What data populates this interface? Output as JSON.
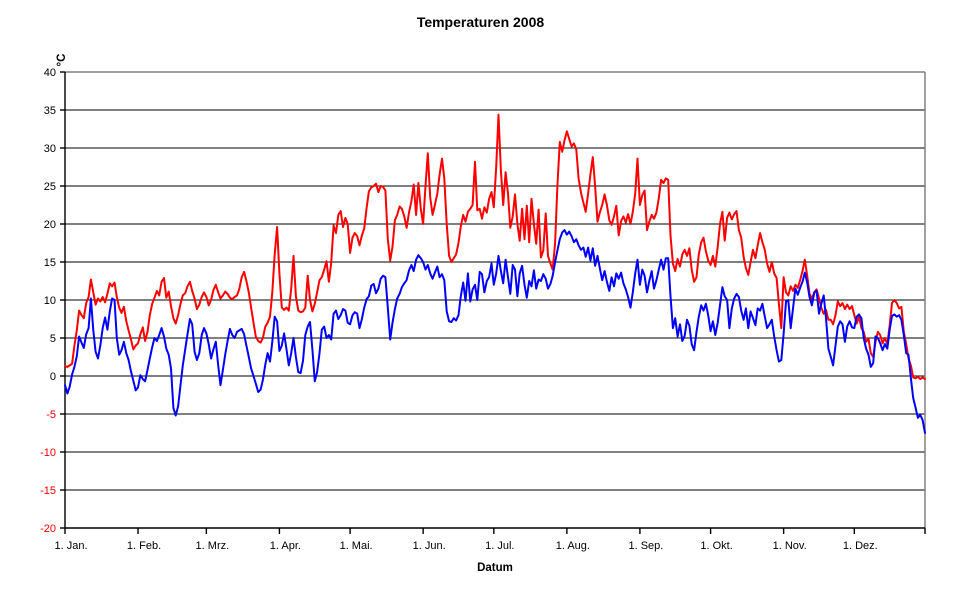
{
  "title": "Temperaturen 2008",
  "y_axis": {
    "title": "°C",
    "min": -20,
    "max": 40,
    "step": 5,
    "tick_labels": [
      "40",
      "35",
      "30",
      "25",
      "20",
      "15",
      "10",
      "5",
      "0",
      "-5",
      "-10",
      "-15",
      "-20"
    ],
    "positive_label_color": "#000000",
    "negative_label_color": "#ff0000"
  },
  "x_axis": {
    "title": "Datum",
    "ticks": [
      {
        "label": "1. Jan.",
        "day": 0
      },
      {
        "label": "1. Feb.",
        "day": 31
      },
      {
        "label": "1. Mrz.",
        "day": 60
      },
      {
        "label": "1. Apr.",
        "day": 91
      },
      {
        "label": "1. Mai.",
        "day": 121
      },
      {
        "label": "1. Jun.",
        "day": 152
      },
      {
        "label": "1. Jul.",
        "day": 182
      },
      {
        "label": "1. Aug.",
        "day": 213
      },
      {
        "label": "1. Sep.",
        "day": 244
      },
      {
        "label": "1. Okt.",
        "day": 274
      },
      {
        "label": "1. Nov.",
        "day": 305
      },
      {
        "label": "1. Dez.",
        "day": 335
      }
    ],
    "end_tick_day": 365
  },
  "plot_style": {
    "background": "#ffffff",
    "grid_color": "#000000",
    "axis_color": "#000000",
    "border_color": "#808080"
  },
  "chart_data": {
    "type": "line",
    "title": "Temperaturen 2008",
    "xlabel": "Datum",
    "ylabel": "°C",
    "ylim": [
      -20,
      40
    ],
    "grid": "horizontal",
    "legend": "none",
    "x_unit": "day of year 2008 (0 = 1. Jan.)",
    "series": [
      {
        "name": "rote-kurve-tagesmaximum",
        "color": "#ff0000",
        "values": [
          1.3,
          1.2,
          1.4,
          1.6,
          4,
          6,
          8.6,
          8,
          7.6,
          9.6,
          10.4,
          12.7,
          11,
          9.4,
          10.2,
          9.8,
          10.4,
          9.7,
          10.8,
          12.2,
          11.8,
          12.3,
          10.4,
          9,
          8.3,
          9.1,
          7.2,
          6,
          4.8,
          3.5,
          4,
          4.3,
          5.5,
          6.4,
          4.6,
          5.8,
          8,
          9.5,
          10.3,
          11.2,
          10.6,
          12.4,
          12.9,
          10.3,
          11.1,
          9.2,
          7.6,
          6.9,
          8,
          9.5,
          10.6,
          10.9,
          11.8,
          12.4,
          11.2,
          10.2,
          8.8,
          9.4,
          10.4,
          11,
          10.4,
          9.3,
          10,
          11.3,
          12,
          11,
          10.2,
          10.6,
          11.1,
          10.8,
          10.3,
          10.1,
          10.4,
          10.6,
          11.5,
          13,
          13.7,
          12.5,
          11,
          9,
          7,
          5.2,
          4.6,
          4.4,
          5,
          6.5,
          7,
          7.8,
          11,
          16,
          19.6,
          13.5,
          9,
          8.7,
          9,
          8.6,
          11.5,
          15.8,
          10.5,
          8.6,
          8.4,
          8.5,
          9,
          13.2,
          10,
          8.5,
          9.5,
          11,
          12.6,
          13,
          14,
          15.1,
          12.4,
          14.9,
          19.8,
          18.8,
          21.2,
          21.7,
          19.6,
          20.8,
          20,
          16.2,
          18.2,
          18.8,
          18.4,
          17.2,
          18.5,
          19.4,
          22.1,
          24.3,
          24.8,
          25,
          25.3,
          24.2,
          25,
          24.9,
          24.4,
          18,
          15.2,
          17,
          20.5,
          21.2,
          22.3,
          22,
          21,
          19.5,
          21.5,
          23,
          25.2,
          21.2,
          25.4,
          22,
          20,
          25,
          29.3,
          23.5,
          21.2,
          22.5,
          24,
          26.5,
          28.6,
          26,
          20,
          15.8,
          15,
          15.5,
          16,
          17.5,
          19.7,
          21.2,
          20.3,
          21.6,
          22,
          22.5,
          28.2,
          21.8,
          22,
          20.7,
          22.2,
          21.5,
          23.3,
          24.2,
          22.2,
          27.5,
          34.4,
          27,
          22.5,
          26.8,
          24,
          19.5,
          21,
          23.9,
          20,
          17.8,
          22,
          18,
          22.4,
          17.6,
          23.3,
          20,
          17.4,
          21.9,
          15.6,
          16.5,
          21.4,
          15.8,
          14.8,
          14,
          17.5,
          25,
          30.8,
          29.5,
          31,
          32.2,
          31.2,
          30.2,
          30.6,
          29.8,
          26,
          24.1,
          22.8,
          21.6,
          24,
          26.5,
          28.8,
          25,
          20.3,
          21.5,
          22.5,
          23.9,
          22.5,
          20.5,
          19.9,
          21,
          22.4,
          18.5,
          20.4,
          21,
          20.2,
          21.3,
          20,
          21.6,
          24,
          28.6,
          22.5,
          23.8,
          24.4,
          19.2,
          20.3,
          21.2,
          20.7,
          21.5,
          23.4,
          25.8,
          25.4,
          26,
          25.8,
          18.5,
          14.8,
          13.8,
          15.4,
          14.4,
          16,
          16.6,
          15.8,
          16.8,
          14,
          12.4,
          13,
          16,
          17.6,
          18.2,
          16.4,
          15.2,
          14.6,
          15.8,
          14.4,
          17,
          20,
          21.6,
          17.8,
          20.8,
          21.5,
          20.6,
          21.3,
          21.7,
          19.2,
          18.2,
          15.7,
          14.2,
          13.3,
          15,
          16.6,
          15.5,
          17.2,
          18.8,
          17.6,
          16.6,
          14.8,
          13.7,
          15,
          13.5,
          12.9,
          9.5,
          6.3,
          13,
          11,
          10.6,
          11.8,
          11.2,
          12,
          11.6,
          12.6,
          13.8,
          15.3,
          13.2,
          10.8,
          10.2,
          11,
          11.4,
          10.2,
          9,
          8.2,
          8.7,
          7.4,
          7.4,
          6.8,
          8,
          9.8,
          9.2,
          9.6,
          8.8,
          9.4,
          8.8,
          9.2,
          8,
          6.9,
          7.8,
          6.3,
          5.8,
          4.5,
          4.9,
          3,
          2.5,
          4.5,
          5.8,
          5.4,
          4.3,
          5,
          4.2,
          6.7,
          9.6,
          10,
          9.6,
          8.9,
          9.1,
          5.8,
          4.2,
          2.3,
          1.4,
          -0.2,
          -0.3,
          -0.1,
          -0.4,
          -0.2,
          -0.4
        ]
      },
      {
        "name": "blaue-kurve-tagesminimum",
        "color": "#0000ff",
        "values": [
          -1.2,
          -2.3,
          -1.4,
          0.2,
          1.2,
          2.6,
          5.2,
          4.4,
          3.7,
          5.5,
          6.3,
          10.2,
          6,
          3.2,
          2.3,
          4,
          6.3,
          7.7,
          6.1,
          8.5,
          10.2,
          10,
          5,
          2.8,
          3.4,
          4.5,
          3,
          2.1,
          0.6,
          -0.6,
          -1.9,
          -1.5,
          0.1,
          -0.4,
          -0.7,
          0.8,
          2.3,
          3.8,
          5,
          4.6,
          5.4,
          6.3,
          5.2,
          3.6,
          2.8,
          1,
          -4.2,
          -5.2,
          -4,
          -1.2,
          1.4,
          3.5,
          5.5,
          7.5,
          6.8,
          3.2,
          2.1,
          3,
          5.4,
          6.3,
          5.6,
          4.2,
          2.3,
          3.5,
          4.5,
          1.4,
          -1.2,
          0.8,
          2.8,
          4.6,
          6.2,
          5.4,
          5,
          5.8,
          6,
          6.2,
          5.5,
          4,
          2.5,
          1,
          0,
          -1,
          -2.1,
          -1.8,
          -0.5,
          1.5,
          3,
          1.9,
          4.5,
          7.8,
          7.2,
          3.3,
          4,
          5.6,
          3.5,
          1.4,
          3,
          5,
          2.5,
          0.5,
          0.4,
          2,
          5.4,
          6.5,
          7.1,
          3.5,
          -0.7,
          0.5,
          3,
          6.1,
          6.5,
          5,
          5.4,
          4.8,
          8.2,
          8.6,
          7.5,
          8,
          8.8,
          8.6,
          7,
          6.8,
          8,
          8.4,
          8.2,
          6.3,
          7.5,
          9,
          10.1,
          10.5,
          11.9,
          12.1,
          10.9,
          11.5,
          12.8,
          13.2,
          13,
          9,
          4.8,
          7,
          8.8,
          10.2,
          10.8,
          11.7,
          12.2,
          12.6,
          13.9,
          14.6,
          13.8,
          15.3,
          15.9,
          15.5,
          15,
          14,
          14.6,
          13.5,
          12.8,
          13.6,
          14.4,
          13,
          13.4,
          12.6,
          8.5,
          7.2,
          7.1,
          7.6,
          7.3,
          8,
          10.5,
          12.3,
          9.9,
          13.5,
          9.8,
          11.4,
          12,
          10,
          13.7,
          13.4,
          11,
          12.5,
          13,
          14.8,
          12,
          13.5,
          15.8,
          13.8,
          12.2,
          15.3,
          13,
          10.8,
          14.6,
          14,
          10.5,
          13.5,
          14.5,
          12,
          10.3,
          12.5,
          11.8,
          13.9,
          11.5,
          12.7,
          12.5,
          13.4,
          12.8,
          11.5,
          12.1,
          13.2,
          15,
          16.5,
          18,
          18.9,
          19.2,
          18.6,
          19,
          18.4,
          17.6,
          18,
          17.2,
          16.6,
          16.9,
          15.7,
          16.9,
          15.2,
          16.8,
          14.5,
          15.8,
          14.2,
          12.6,
          13.8,
          12.4,
          11.2,
          13,
          11.8,
          13.5,
          12.8,
          13.6,
          12.2,
          11.4,
          10.4,
          9,
          11,
          13.5,
          15.3,
          12,
          14,
          13.2,
          11,
          12.5,
          13.8,
          11.5,
          12.6,
          14,
          15.3,
          14,
          15.5,
          15.5,
          10.5,
          6.3,
          7.6,
          5.2,
          6.8,
          4.6,
          5.3,
          7.4,
          6.6,
          4.2,
          3.4,
          5.8,
          7.8,
          9.3,
          8.6,
          9.5,
          8,
          5.9,
          7.2,
          5.4,
          7,
          9.3,
          11.7,
          10.5,
          10,
          6.3,
          8.9,
          10.2,
          10.8,
          10.4,
          8.6,
          7.4,
          8.9,
          6.3,
          8.5,
          7.6,
          6.7,
          8.9,
          8.6,
          9.5,
          7.8,
          6.3,
          6.8,
          7.4,
          5.2,
          3.4,
          1.9,
          2.1,
          5.5,
          9.8,
          10,
          6.3,
          9,
          11.5,
          10.7,
          11.6,
          12.4,
          13.6,
          12.3,
          10.4,
          9.3,
          11,
          11.2,
          8.2,
          9.5,
          10.6,
          7.6,
          3.6,
          2.5,
          1.4,
          4,
          6.5,
          7.2,
          6.8,
          4.5,
          6.5,
          7.2,
          6.4,
          6.3,
          7.8,
          8.1,
          7.6,
          5,
          3.6,
          2.8,
          1.2,
          1.7,
          5.2,
          5,
          4.3,
          3.4,
          4.2,
          3.6,
          6.1,
          7.9,
          8.1,
          7.8,
          8,
          7.4,
          5.4,
          3,
          2.8,
          -0.3,
          -2.9,
          -4.2,
          -5.5,
          -5.1,
          -5.8,
          -7.5
        ]
      }
    ]
  }
}
